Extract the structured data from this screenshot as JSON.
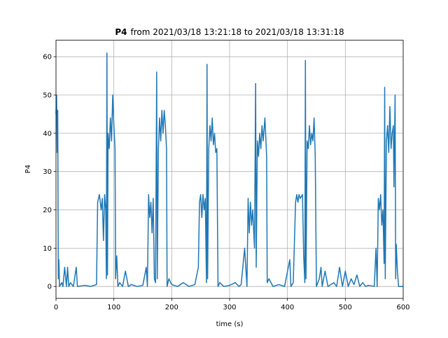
{
  "chart_data": {
    "type": "line",
    "title": [
      "P4",
      "from 2021/03/18 13:21:18 to 2021/03/18 13:31:18"
    ],
    "xlabel": "time (s)",
    "ylabel": "P4",
    "xlim": [
      0,
      600
    ],
    "ylim": [
      -3.1,
      64.3
    ],
    "xticks": [
      0,
      100,
      200,
      300,
      400,
      500,
      600
    ],
    "yticks": [
      0,
      10,
      20,
      30,
      40,
      50,
      60
    ],
    "grid": true,
    "series": [
      {
        "name": "P4",
        "color": "#1f77b4",
        "x": [
          0,
          1,
          2,
          3,
          4,
          5,
          6,
          10,
          12,
          15,
          18,
          20,
          22,
          25,
          30,
          35,
          37,
          50,
          60,
          70,
          72,
          75,
          78,
          80,
          82,
          84,
          86,
          87,
          88,
          89,
          90,
          92,
          94,
          96,
          98,
          100,
          102,
          103,
          105,
          107,
          110,
          115,
          120,
          125,
          130,
          140,
          150,
          156,
          158,
          160,
          162,
          164,
          166,
          168,
          170,
          172,
          174,
          175,
          177,
          179,
          181,
          183,
          185,
          187,
          189,
          191,
          192,
          195,
          200,
          210,
          220,
          230,
          240,
          246,
          248,
          250,
          252,
          254,
          256,
          258,
          260,
          261,
          262,
          264,
          266,
          268,
          270,
          272,
          274,
          276,
          278,
          280,
          283,
          290,
          300,
          310,
          316,
          320,
          326,
          330,
          332,
          334,
          336,
          338,
          340,
          343,
          345,
          346,
          348,
          350,
          352,
          354,
          356,
          358,
          361,
          364,
          365,
          368,
          375,
          385,
          395,
          404,
          406,
          410,
          414,
          416,
          418,
          420,
          422,
          426,
          428,
          430,
          431,
          432,
          434,
          436,
          438,
          440,
          442,
          444,
          446,
          448,
          450,
          455,
          458,
          460,
          465,
          470,
          480,
          485,
          490,
          495,
          500,
          505,
          510,
          515,
          520,
          525,
          530,
          535,
          540,
          550,
          553,
          555,
          557,
          559,
          561,
          563,
          565,
          567,
          568,
          569,
          571,
          573,
          575,
          577,
          579,
          581,
          583,
          584,
          586,
          587,
          588,
          590,
          592,
          595,
          600
        ],
        "values": [
          45,
          50,
          35,
          46,
          2,
          7,
          0,
          1,
          0,
          5,
          0,
          5,
          0,
          1,
          0,
          5,
          0,
          0.3,
          0,
          0.5,
          22,
          24,
          20,
          23,
          12,
          24,
          20,
          2,
          61,
          3,
          40,
          36,
          44,
          38,
          50,
          42,
          36,
          2,
          8,
          0,
          1,
          0,
          4,
          0,
          0.5,
          0,
          0.3,
          5,
          0,
          24,
          18,
          22,
          14,
          23,
          2,
          1,
          56,
          2,
          36,
          44,
          38,
          46,
          40,
          46,
          42,
          36,
          0,
          2,
          0.5,
          0,
          1,
          0,
          0.5,
          5,
          22,
          24,
          18,
          24,
          20,
          23,
          1,
          58,
          2,
          36,
          42,
          38,
          44,
          37,
          40,
          35,
          36,
          0,
          1,
          0,
          0.3,
          1,
          0,
          0.5,
          10,
          0,
          23,
          14,
          22,
          16,
          20,
          10,
          53,
          5,
          38,
          34,
          40,
          36,
          42,
          38,
          44,
          34,
          1,
          2,
          0,
          0.5,
          0,
          7,
          0,
          1,
          22,
          24,
          22,
          24,
          23,
          24,
          8,
          1,
          59,
          2,
          38,
          36,
          42,
          37,
          40,
          38,
          44,
          34,
          0,
          2,
          5,
          0,
          4,
          0,
          1,
          0,
          5,
          0,
          4,
          0,
          2,
          0.5,
          3,
          0,
          1,
          0,
          0.3,
          0,
          10,
          0,
          23,
          20,
          24,
          16,
          20,
          6,
          52,
          2,
          38,
          42,
          35,
          47,
          36,
          40,
          42,
          26,
          50,
          2,
          11,
          4,
          0,
          0,
          0
        ]
      }
    ]
  }
}
